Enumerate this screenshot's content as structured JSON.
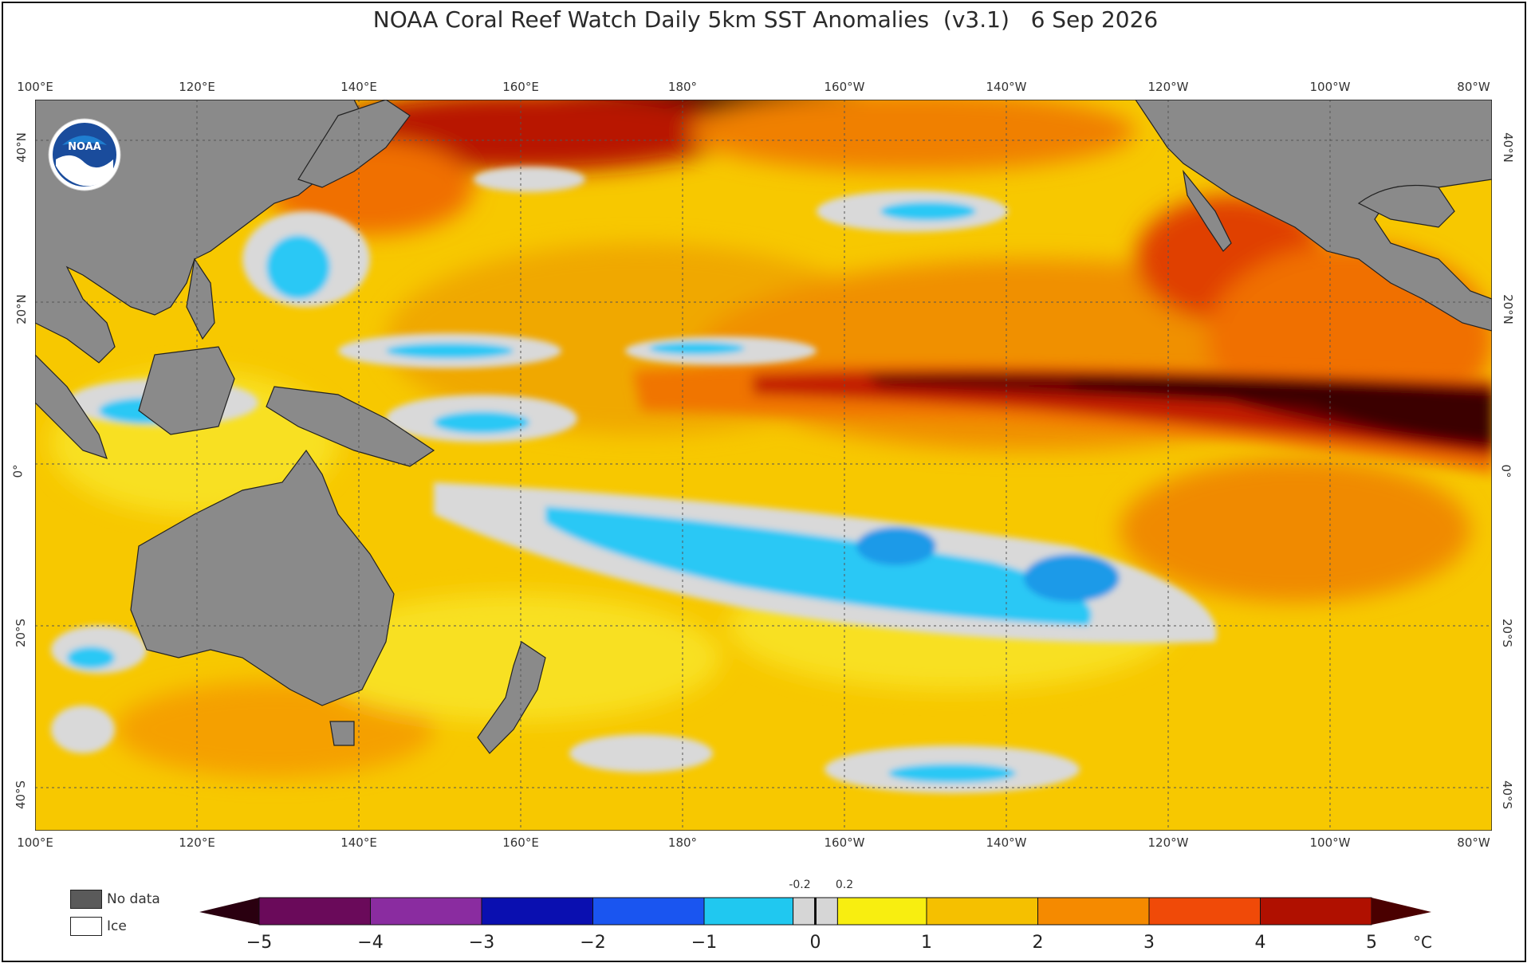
{
  "title": "NOAA Coral Reef Watch Daily 5km SST Anomalies  (v3.1)   6 Sep 2026",
  "logo_text": "NOAA",
  "lon_labels": [
    "100°E",
    "120°E",
    "140°E",
    "160°E",
    "180°",
    "160°W",
    "140°W",
    "120°W",
    "100°W",
    "80°W"
  ],
  "lat_labels": [
    "40°N",
    "20°N",
    "0°",
    "20°S",
    "40°S"
  ],
  "legend": {
    "nodata_label": "No data",
    "ice_label": "Ice"
  },
  "colorbar": {
    "ticks": [
      "−5",
      "−4",
      "−3",
      "−2",
      "−1",
      "0",
      "1",
      "2",
      "3",
      "4",
      "5"
    ],
    "small_ticks": [
      "-0.2",
      "0.2"
    ],
    "unit": "°C",
    "colors": [
      "#2a0010",
      "#6a0a5a",
      "#8a2ca0",
      "#3c30b0",
      "#0a0fb0",
      "#1a55f0",
      "#20c8f0",
      "#d6d6d6",
      "#f8ee10",
      "#f5c000",
      "#f58a00",
      "#f04a08",
      "#b01000",
      "#4a0000"
    ]
  },
  "colors": {
    "land": "#8a8a8a",
    "ocean_warm": "#f7c600",
    "hot": "#c01800",
    "very_hot": "#450000",
    "cool": "#2bc8f5",
    "neutral": "#d9d9d9"
  }
}
